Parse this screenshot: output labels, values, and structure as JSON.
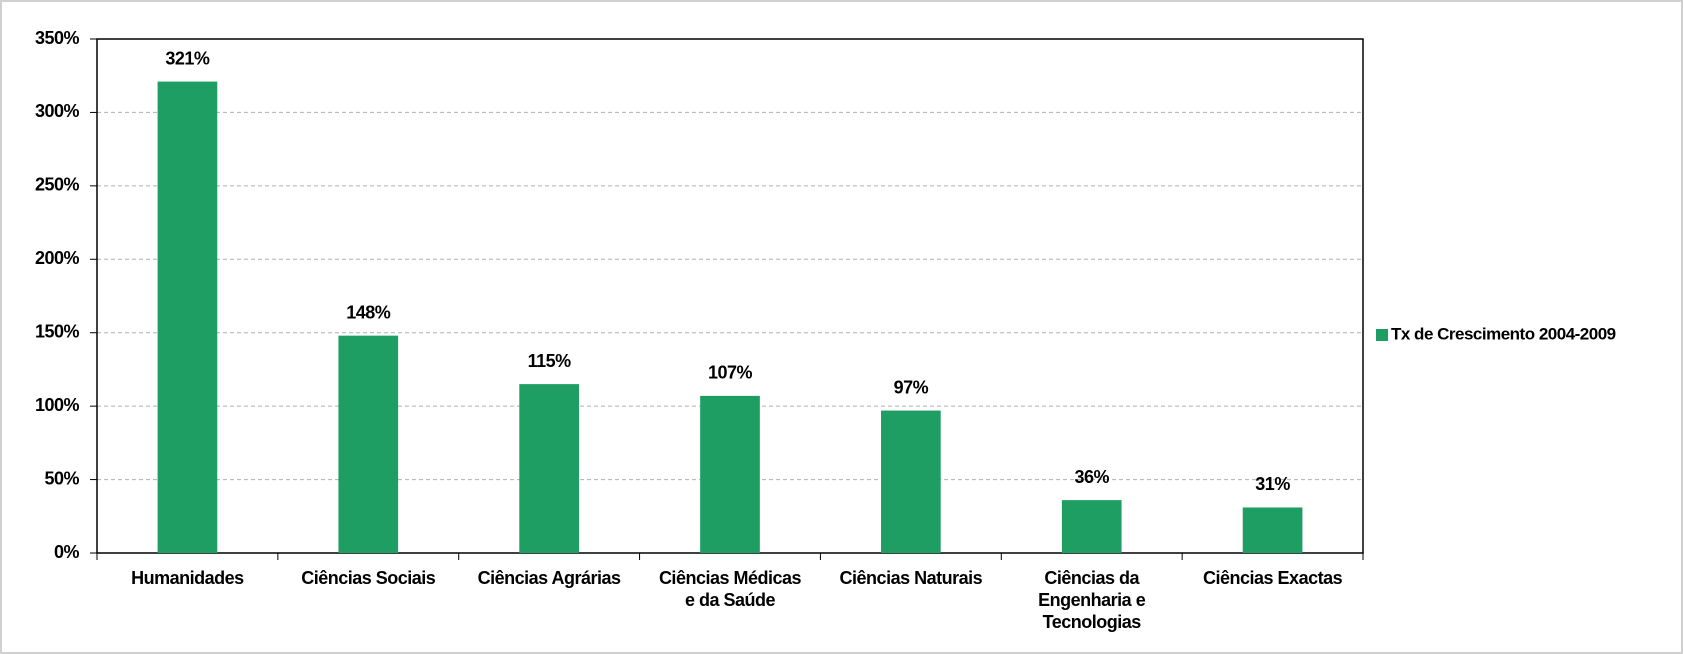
{
  "chart_data": {
    "type": "bar",
    "categories": [
      "Humanidades",
      "Ciências Sociais",
      "Ciências Agrárias",
      "Ciências Médicas e da Saúde",
      "Ciências Naturais",
      "Ciências da Engenharia e Tecnologias",
      "Ciências Exactas"
    ],
    "series": [
      {
        "name": "Tx de Crescimento 2004-2009",
        "color": "#1f9e63",
        "values": [
          321,
          148,
          115,
          107,
          97,
          36,
          31
        ],
        "value_labels": [
          "321%",
          "148%",
          "115%",
          "107%",
          "97%",
          "36%",
          "31%"
        ]
      }
    ],
    "ylim": [
      0,
      350
    ],
    "yticks": [
      {
        "value": 0,
        "label": "0%"
      },
      {
        "value": 50,
        "label": "50%"
      },
      {
        "value": 100,
        "label": "100%"
      },
      {
        "value": 150,
        "label": "150%"
      },
      {
        "value": 200,
        "label": "200%"
      },
      {
        "value": 250,
        "label": "250%"
      },
      {
        "value": 300,
        "label": "300%"
      },
      {
        "value": 350,
        "label": "350%"
      }
    ],
    "grid": true,
    "legend": "right"
  }
}
